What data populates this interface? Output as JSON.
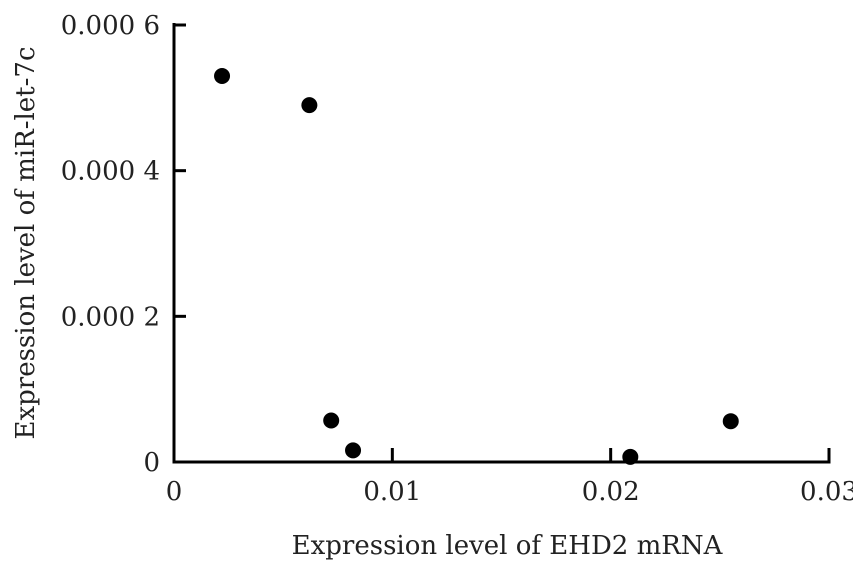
{
  "chart_data": {
    "type": "scatter",
    "title": "",
    "xlabel": "Expression level of EHD2 mRNA",
    "ylabel": "Expression level of miR-let-7c",
    "xlim": [
      0,
      0.03
    ],
    "ylim": [
      0,
      0.0006
    ],
    "x_ticks": [
      {
        "value": 0,
        "label": "0"
      },
      {
        "value": 0.01,
        "label": "0.01"
      },
      {
        "value": 0.02,
        "label": "0.02"
      },
      {
        "value": 0.03,
        "label": "0.03"
      }
    ],
    "y_ticks": [
      {
        "value": 0,
        "label": "0"
      },
      {
        "value": 0.0002,
        "label": "0.000 2"
      },
      {
        "value": 0.0004,
        "label": "0.000 4"
      },
      {
        "value": 0.0006,
        "label": "0.000 6"
      }
    ],
    "grid": false,
    "legend": "none",
    "marker_color": "#000000",
    "points": [
      {
        "x": 0.0022,
        "y": 0.00053
      },
      {
        "x": 0.0062,
        "y": 0.00049
      },
      {
        "x": 0.0072,
        "y": 5.7e-05
      },
      {
        "x": 0.0082,
        "y": 1.6e-05
      },
      {
        "x": 0.0209,
        "y": 7e-06
      },
      {
        "x": 0.0255,
        "y": 5.6e-05
      }
    ]
  }
}
